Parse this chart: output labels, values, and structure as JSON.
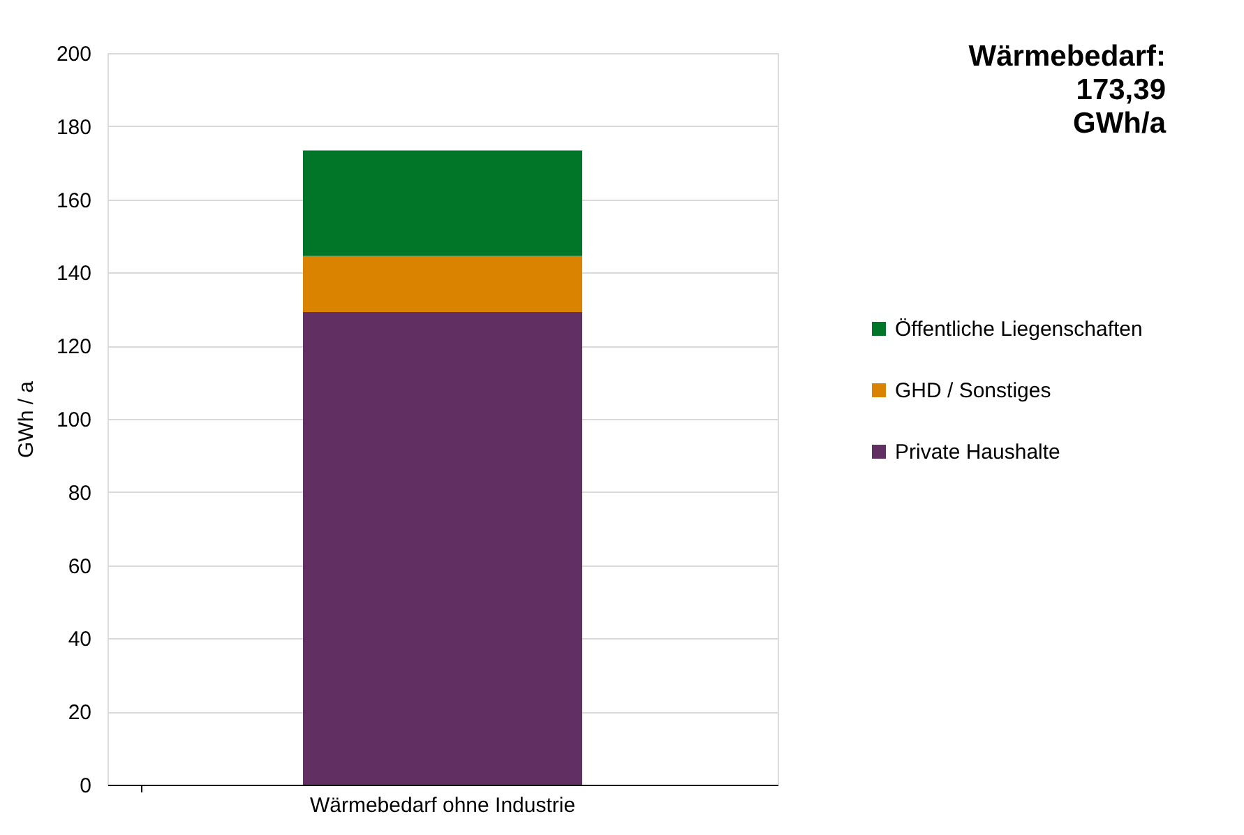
{
  "chart_data": {
    "type": "bar",
    "stacked": true,
    "categories": [
      "Wärmebedarf ohne Industrie"
    ],
    "ylabel": "GWh / a",
    "ylim": [
      0,
      200
    ],
    "yticks": [
      0,
      20,
      40,
      60,
      80,
      100,
      120,
      140,
      160,
      180,
      200
    ],
    "grid": "y",
    "legend": "right",
    "annotations": [
      "Wärmebedarf: 173,39 GWh/a"
    ],
    "series": [
      {
        "name": "Private Haushalte",
        "color": "#612f61",
        "values": [
          129.2
        ]
      },
      {
        "name": "GHD / Sonstiges",
        "color": "#d98300",
        "values": [
          15.3
        ]
      },
      {
        "name": "Öffentliche Liegenschaften",
        "color": "#027628",
        "values": [
          28.9
        ]
      }
    ]
  }
}
